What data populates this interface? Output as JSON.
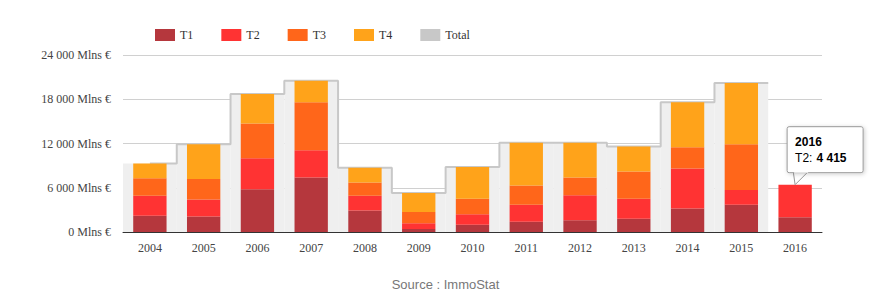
{
  "chart_data": {
    "type": "bar",
    "stacked": true,
    "grid": true,
    "legend": "top-left",
    "categories": [
      "2004",
      "2005",
      "2006",
      "2007",
      "2008",
      "2009",
      "2010",
      "2011",
      "2012",
      "2013",
      "2014",
      "2015",
      "2016"
    ],
    "series": [
      {
        "name": "T1",
        "color": "#b5373d",
        "values": [
          2200,
          2100,
          5800,
          7400,
          2900,
          400,
          1000,
          1400,
          1600,
          1800,
          3200,
          3700,
          2000
        ]
      },
      {
        "name": "T2",
        "color": "#ff3333",
        "values": [
          2700,
          2300,
          4200,
          3700,
          2000,
          800,
          1400,
          2300,
          3400,
          2700,
          5400,
          2000,
          4415
        ]
      },
      {
        "name": "T3",
        "color": "#ff661a",
        "values": [
          2400,
          2800,
          4700,
          6500,
          1800,
          1500,
          2100,
          2600,
          2400,
          3700,
          2900,
          6200,
          null
        ]
      },
      {
        "name": "T4",
        "color": "#ffa31a",
        "values": [
          2000,
          4700,
          4000,
          2900,
          2000,
          2600,
          4300,
          5800,
          4700,
          3400,
          6100,
          8300,
          null
        ]
      },
      {
        "name": "Total",
        "color": "#c8c8c8",
        "type": "step",
        "values": [
          9300,
          11900,
          18700,
          20500,
          8700,
          5300,
          8800,
          12100,
          12100,
          11600,
          17600,
          20200,
          null
        ]
      }
    ],
    "ylim": [
      0,
      24000
    ],
    "yticks": [
      {
        "value": 0,
        "label": "0 Mlns €"
      },
      {
        "value": 6000,
        "label": "6 000 Mlns €"
      },
      {
        "value": 12000,
        "label": "12 000 Mlns €"
      },
      {
        "value": 18000,
        "label": "18 000 Mlns €"
      },
      {
        "value": 24000,
        "label": "24 000 Mlns €"
      }
    ],
    "annotations": [
      {
        "category": "2016",
        "series": "T2",
        "header": "2016",
        "label": "T2:",
        "value": 4415,
        "value_label": "4 415"
      }
    ],
    "caption": "Source : ImmoStat"
  }
}
